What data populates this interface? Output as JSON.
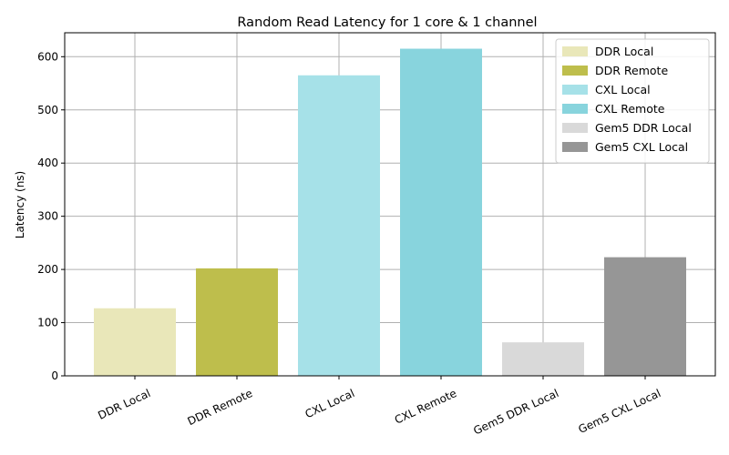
{
  "chart_data": {
    "type": "bar",
    "title": "Random Read Latency for 1 core & 1 channel",
    "xlabel": "",
    "ylabel": "Latency (ns)",
    "ylim": [
      0,
      645
    ],
    "yticks": [
      0,
      100,
      200,
      300,
      400,
      500,
      600
    ],
    "grid": true,
    "legend_position": "top-right",
    "categories": [
      "DDR Local",
      "DDR Remote",
      "CXL Local",
      "CXL Remote",
      "Gem5 DDR Local",
      "Gem5 CXL Local"
    ],
    "values": [
      127,
      202,
      565,
      615,
      63,
      223
    ],
    "colors": [
      "#e9e7b9",
      "#bebe4c",
      "#a6e1e8",
      "#88d4dd",
      "#d9d9d9",
      "#969696"
    ],
    "legend": [
      "DDR Local",
      "DDR Remote",
      "CXL Local",
      "CXL Remote",
      "Gem5 DDR Local",
      "Gem5 CXL Local"
    ]
  }
}
